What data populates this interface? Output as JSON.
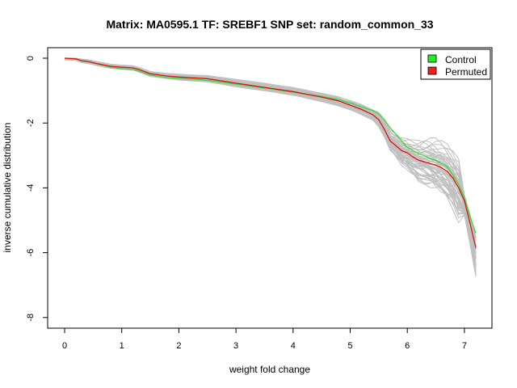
{
  "chart_data": {
    "type": "line",
    "title": "Matrix: MA0595.1 TF: SREBF1 SNP set: random_common_33",
    "xlabel": "weight fold change",
    "ylabel": "inverse cumulative distribution",
    "xlim": [
      0,
      7.2
    ],
    "ylim": [
      -8,
      0
    ],
    "x_ticks": [
      0,
      1,
      2,
      3,
      4,
      5,
      6,
      7
    ],
    "y_ticks": [
      0,
      -2,
      -4,
      -6,
      -8
    ],
    "legend": {
      "position": "top-right",
      "entries": [
        {
          "name": "Control",
          "color": "#00cc00"
        },
        {
          "name": "Permuted",
          "color": "#ee0000"
        }
      ]
    },
    "colors": {
      "background_lines": "#c0c0c0",
      "control_line": "#33dd33",
      "permuted_line": "#dd1111",
      "legend_control_fill": "#22ee22",
      "legend_permuted_fill": "#ee2222"
    },
    "series": [
      {
        "name": "Control",
        "x": [
          0.0,
          0.2,
          0.3,
          0.4,
          0.6,
          0.8,
          1.0,
          1.2,
          1.3,
          1.5,
          1.8,
          2.0,
          2.5,
          3.0,
          3.5,
          4.0,
          4.2,
          4.5,
          4.8,
          5.0,
          5.2,
          5.4,
          5.5,
          5.6,
          5.7,
          5.8,
          5.9,
          6.0,
          6.1,
          6.2,
          6.3,
          6.4,
          6.5,
          6.6,
          6.7,
          6.8,
          6.9,
          7.0,
          7.1,
          7.2
        ],
        "values": [
          0.0,
          -0.02,
          -0.08,
          -0.1,
          -0.18,
          -0.28,
          -0.33,
          -0.35,
          -0.4,
          -0.52,
          -0.6,
          -0.62,
          -0.68,
          -0.8,
          -0.92,
          -1.05,
          -1.1,
          -1.18,
          -1.28,
          -1.38,
          -1.5,
          -1.62,
          -1.72,
          -1.9,
          -2.15,
          -2.35,
          -2.55,
          -2.75,
          -2.85,
          -2.95,
          -3.0,
          -3.1,
          -3.15,
          -3.25,
          -3.35,
          -3.6,
          -3.9,
          -4.3,
          -4.9,
          -5.4
        ]
      },
      {
        "name": "Permuted",
        "x": [
          0.0,
          0.2,
          0.3,
          0.4,
          0.6,
          0.8,
          1.0,
          1.2,
          1.3,
          1.5,
          1.8,
          2.0,
          2.5,
          3.0,
          3.5,
          4.0,
          4.2,
          4.5,
          4.8,
          5.0,
          5.2,
          5.4,
          5.5,
          5.6,
          5.7,
          5.8,
          5.9,
          6.0,
          6.1,
          6.2,
          6.3,
          6.4,
          6.5,
          6.6,
          6.7,
          6.8,
          6.9,
          7.0,
          7.1,
          7.2
        ],
        "values": [
          0.0,
          -0.02,
          -0.08,
          -0.1,
          -0.18,
          -0.25,
          -0.28,
          -0.3,
          -0.35,
          -0.48,
          -0.55,
          -0.58,
          -0.63,
          -0.77,
          -0.9,
          -1.03,
          -1.1,
          -1.2,
          -1.32,
          -1.45,
          -1.58,
          -1.75,
          -1.9,
          -2.2,
          -2.55,
          -2.7,
          -2.85,
          -2.92,
          -3.05,
          -3.15,
          -3.2,
          -3.25,
          -3.3,
          -3.38,
          -3.5,
          -3.7,
          -4.0,
          -4.4,
          -5.1,
          -5.85
        ]
      }
    ]
  }
}
